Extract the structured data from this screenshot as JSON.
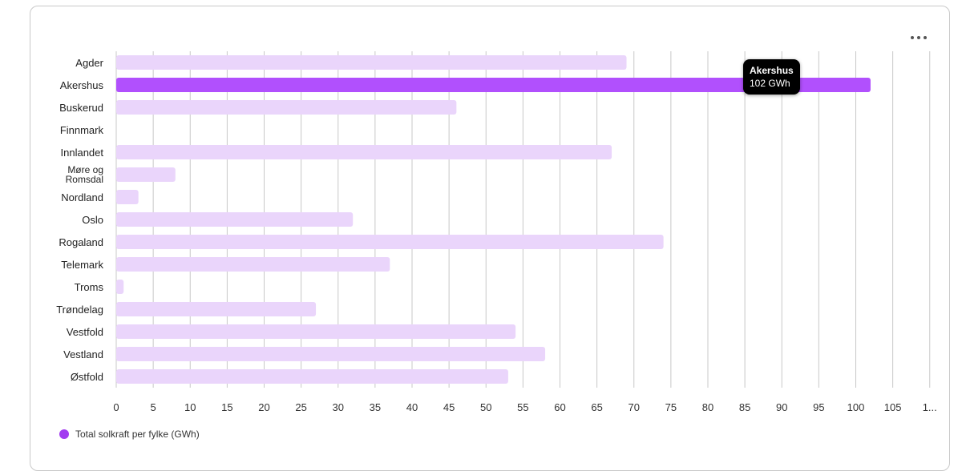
{
  "chart_data": {
    "type": "bar",
    "orientation": "horizontal",
    "categories": [
      "Agder",
      "Akershus",
      "Buskerud",
      "Finnmark",
      "Innlandet",
      "Møre og Romsdal",
      "Nordland",
      "Oslo",
      "Rogaland",
      "Telemark",
      "Troms",
      "Trøndelag",
      "Vestfold",
      "Vestland",
      "Østfold"
    ],
    "category_lines": [
      [
        "Agder"
      ],
      [
        "Akershus"
      ],
      [
        "Buskerud"
      ],
      [
        "Finnmark"
      ],
      [
        "Innlandet"
      ],
      [
        "Møre og",
        "Romsdal"
      ],
      [
        "Nordland"
      ],
      [
        "Oslo"
      ],
      [
        "Rogaland"
      ],
      [
        "Telemark"
      ],
      [
        "Troms"
      ],
      [
        "Trøndelag"
      ],
      [
        "Vestfold"
      ],
      [
        "Vestland"
      ],
      [
        "Østfold"
      ]
    ],
    "series": [
      {
        "name": "Total solkraft per fylke (GWh)",
        "values": [
          69,
          102,
          46,
          0,
          67,
          8,
          3,
          32,
          74,
          37,
          1,
          27,
          54,
          58,
          53
        ]
      }
    ],
    "highlighted_index": 1,
    "xlim": [
      0,
      110
    ],
    "x_ticks": [
      "0",
      "5",
      "10",
      "15",
      "20",
      "25",
      "30",
      "35",
      "40",
      "45",
      "50",
      "55",
      "60",
      "65",
      "70",
      "75",
      "80",
      "85",
      "90",
      "95",
      "100",
      "105",
      "1..."
    ],
    "grid": "vertical",
    "legend_position": "bottom-left",
    "colors": {
      "bar": "#ead5fb",
      "highlight": "#b150fd",
      "legend": "#a23cf0",
      "grid": "#c8c8c8"
    }
  },
  "tooltip": {
    "title": "Akershus",
    "value": "102 GWh"
  },
  "legend": {
    "label": "Total solkraft per fylke (GWh)"
  },
  "menu": {
    "icon": "more-horizontal-icon"
  }
}
